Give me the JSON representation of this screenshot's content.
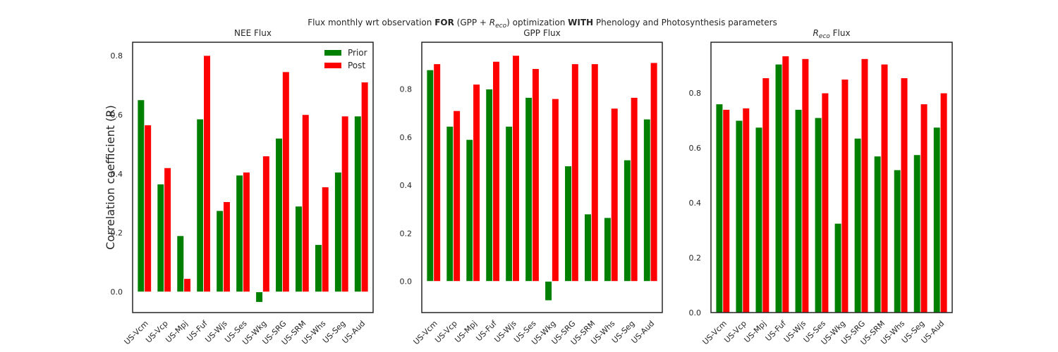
{
  "figure": {
    "title_parts": [
      {
        "text": "Flux monthly wrt observation ",
        "weight": "normal",
        "style": "normal"
      },
      {
        "text": "FOR",
        "weight": "bold",
        "style": "normal"
      },
      {
        "text": " (GPP + ",
        "weight": "normal",
        "style": "normal"
      },
      {
        "text": "R",
        "weight": "normal",
        "style": "italic"
      },
      {
        "text": "eco",
        "weight": "normal",
        "style": "italic",
        "sub": true
      },
      {
        "text": ") optimization ",
        "weight": "normal",
        "style": "normal"
      },
      {
        "text": "WITH",
        "weight": "bold",
        "style": "normal"
      },
      {
        "text": " Phenology and Photosynthesis parameters",
        "weight": "normal",
        "style": "normal"
      }
    ],
    "ylabel": "Correlation coefficient (R)",
    "colors": {
      "prior": "#008000",
      "post": "#ff0000",
      "frame": "#262626"
    }
  },
  "chart_data": [
    {
      "type": "bar",
      "title": "NEE Flux",
      "categories": [
        "US-Vcm",
        "US-Vcp",
        "US-Mpj",
        "US-Fuf",
        "US-Wjs",
        "US-Ses",
        "US-Wkg",
        "US-SRG",
        "US-SRM",
        "US-Whs",
        "US-Seg",
        "US-Aud"
      ],
      "series": [
        {
          "name": "Prior",
          "values": [
            0.65,
            0.365,
            0.19,
            0.585,
            0.275,
            0.395,
            -0.035,
            0.52,
            0.29,
            0.16,
            0.405,
            0.595
          ]
        },
        {
          "name": "Post",
          "values": [
            0.565,
            0.42,
            0.045,
            0.8,
            0.305,
            0.405,
            0.46,
            0.745,
            0.6,
            0.355,
            0.595,
            0.71
          ]
        }
      ],
      "ylim": [
        -0.07,
        0.845
      ],
      "yticks": [
        0.0,
        0.2,
        0.4,
        0.6,
        0.8
      ],
      "ytick_labels": [
        "0.0",
        "0.2",
        "0.4",
        "0.6",
        "0.8"
      ],
      "legend": "top-right",
      "grid": false
    },
    {
      "type": "bar",
      "title": "GPP Flux",
      "categories": [
        "US-Vcm",
        "US-Vcp",
        "US-Mpj",
        "US-Fuf",
        "US-Wjs",
        "US-Ses",
        "US-Wkg",
        "US-SRG",
        "US-SRM",
        "US-Whs",
        "US-Seg",
        "US-Aud"
      ],
      "series": [
        {
          "name": "Prior",
          "values": [
            0.88,
            0.645,
            0.59,
            0.8,
            0.645,
            0.765,
            -0.08,
            0.48,
            0.28,
            0.265,
            0.505,
            0.675
          ]
        },
        {
          "name": "Post",
          "values": [
            0.905,
            0.71,
            0.82,
            0.915,
            0.94,
            0.885,
            0.76,
            0.905,
            0.905,
            0.72,
            0.765,
            0.91
          ]
        }
      ],
      "ylim": [
        -0.13,
        0.995
      ],
      "yticks": [
        0.0,
        0.2,
        0.4,
        0.6,
        0.8
      ],
      "ytick_labels": [
        "0.0",
        "0.2",
        "0.4",
        "0.6",
        "0.8"
      ],
      "grid": false
    },
    {
      "type": "bar",
      "title_parts": [
        {
          "text": "R",
          "style": "italic"
        },
        {
          "text": "eco",
          "style": "italic",
          "sub": true
        },
        {
          "text": " Flux",
          "style": "normal"
        }
      ],
      "categories": [
        "US-Vcm",
        "US-Vcp",
        "US-Mpj",
        "US-Fuf",
        "US-Wjs",
        "US-Ses",
        "US-Wkg",
        "US-SRG",
        "US-SRM",
        "US-Whs",
        "US-Seg",
        "US-Aud"
      ],
      "series": [
        {
          "name": "Prior",
          "values": [
            0.76,
            0.7,
            0.675,
            0.905,
            0.74,
            0.71,
            0.325,
            0.635,
            0.57,
            0.52,
            0.575,
            0.675
          ]
        },
        {
          "name": "Post",
          "values": [
            0.74,
            0.745,
            0.855,
            0.935,
            0.925,
            0.8,
            0.85,
            0.925,
            0.905,
            0.855,
            0.76,
            0.8
          ]
        }
      ],
      "ylim": [
        0.0,
        0.985
      ],
      "yticks": [
        0.0,
        0.2,
        0.4,
        0.6,
        0.8
      ],
      "ytick_labels": [
        "0.0",
        "0.2",
        "0.4",
        "0.6",
        "0.8"
      ],
      "grid": false
    }
  ]
}
